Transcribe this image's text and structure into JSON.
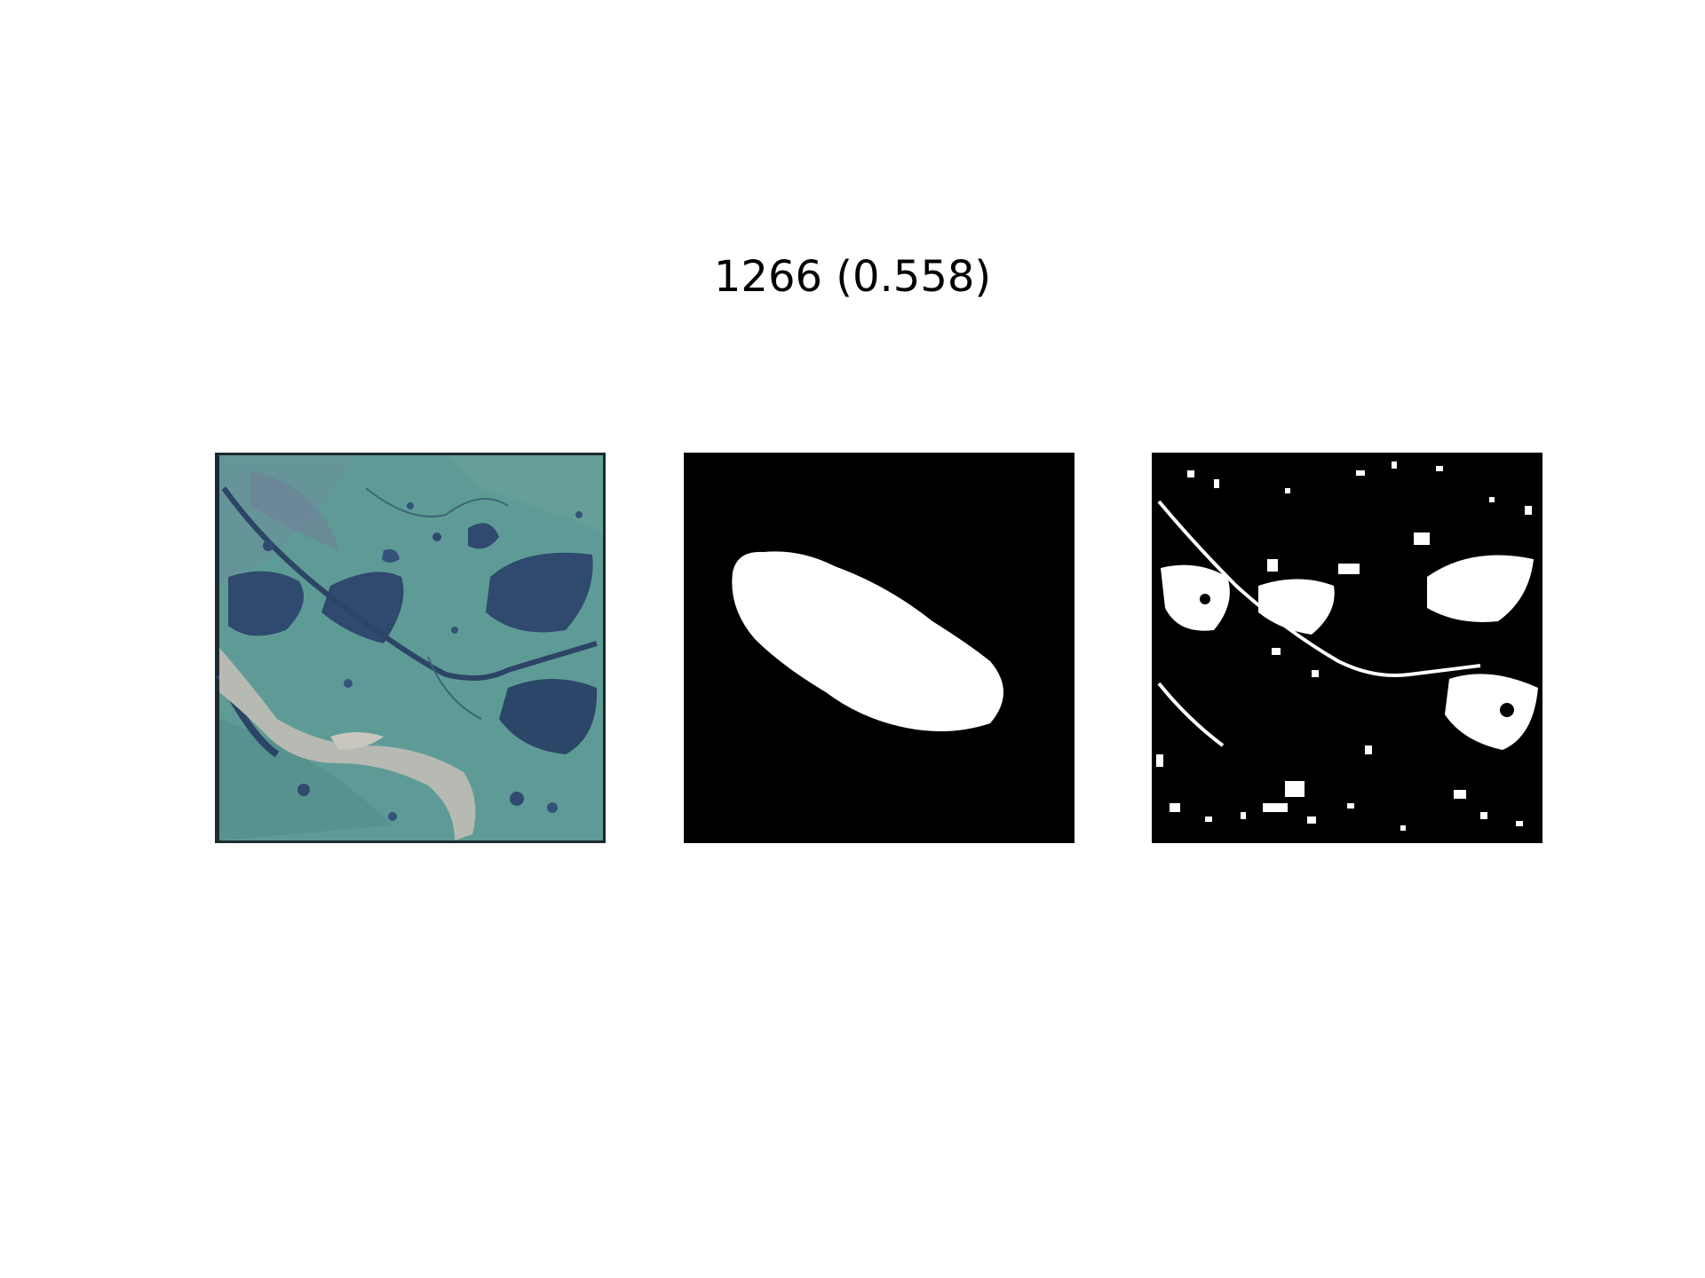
{
  "figure": {
    "title": "1266 (0.558)",
    "panels": [
      {
        "kind": "satellite-image"
      },
      {
        "kind": "ground-truth-mask"
      },
      {
        "kind": "predicted-mask"
      }
    ]
  },
  "colors": {
    "background": "#ffffff",
    "mask_background": "#000000",
    "mask_foreground": "#ffffff",
    "land": "#5e9a94",
    "water": "#2f4a6e",
    "sediment": "#b9b9b2"
  }
}
